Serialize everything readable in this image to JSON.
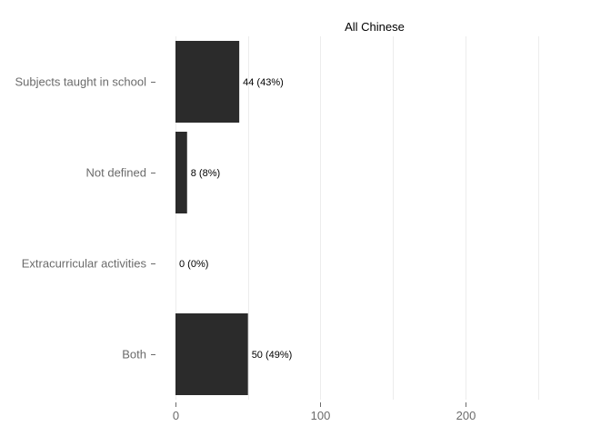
{
  "chart_data": {
    "type": "bar",
    "orientation": "horizontal",
    "title": "All Chinese",
    "categories": [
      "Subjects taught in school",
      "Not defined",
      "Extracurricular activities",
      "Both"
    ],
    "values": [
      44,
      8,
      0,
      50
    ],
    "data_labels": [
      "44 (43%)",
      "8 (8%)",
      "0 (0%)",
      "50 (49%)"
    ],
    "x_ticks": [
      0,
      100,
      200
    ],
    "xlim": [
      0,
      255
    ],
    "grid": true,
    "legend": "none",
    "colors": {
      "bar": "#2b2b2b",
      "grid": "#ececec",
      "axis_text": "#6b6b6b"
    }
  }
}
